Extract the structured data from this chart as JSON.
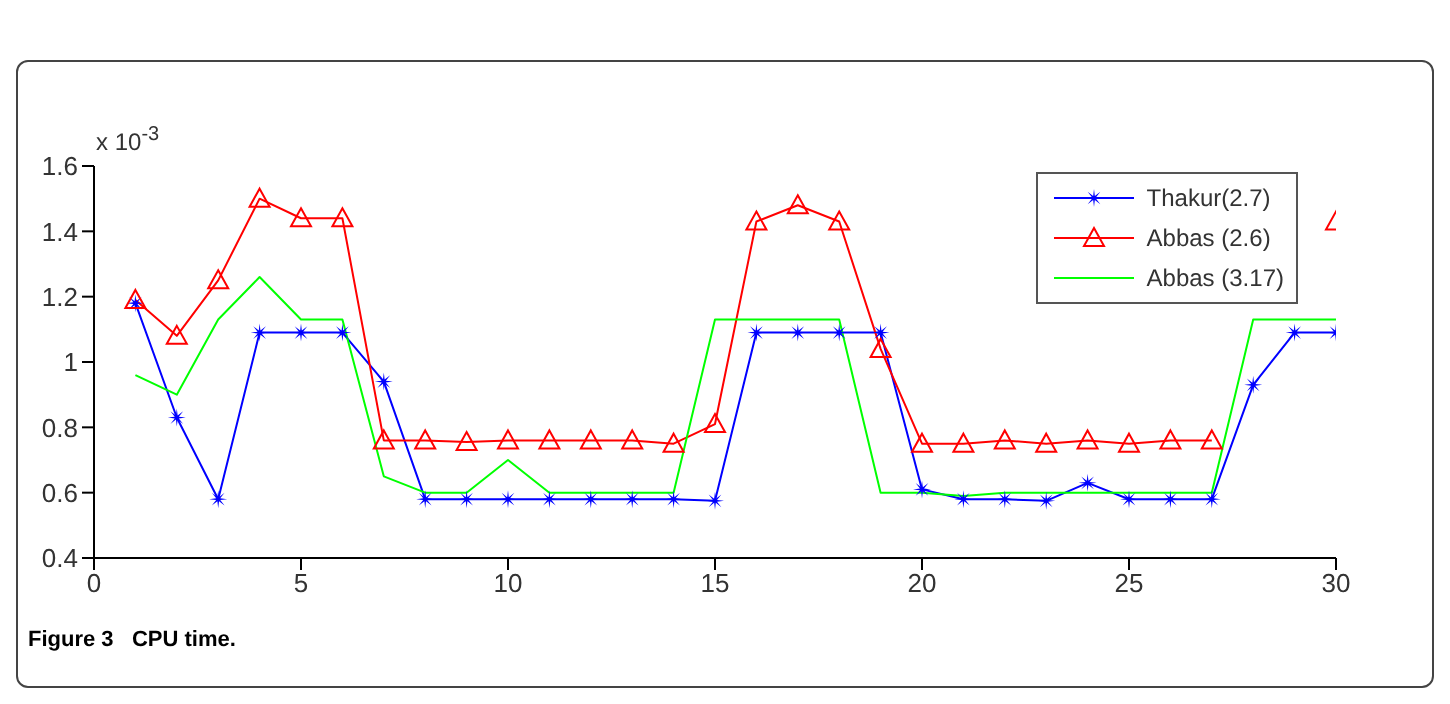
{
  "chart_data": {
    "type": "line",
    "x": [
      1,
      2,
      3,
      4,
      5,
      6,
      7,
      8,
      9,
      10,
      11,
      12,
      13,
      14,
      15,
      16,
      17,
      18,
      19,
      20,
      21,
      22,
      23,
      24,
      25,
      26,
      27,
      28,
      29,
      30
    ],
    "series": [
      {
        "name": "Thakur(2.7)",
        "color": "#0000ff",
        "marker": "star",
        "values": [
          1.18,
          0.83,
          0.58,
          1.09,
          1.09,
          1.09,
          0.94,
          0.58,
          0.58,
          0.58,
          0.58,
          0.58,
          0.58,
          0.58,
          0.575,
          1.09,
          1.09,
          1.09,
          1.09,
          0.61,
          0.58,
          0.58,
          0.575,
          0.63,
          0.58,
          0.58,
          0.58,
          0.93,
          1.09,
          1.09
        ]
      },
      {
        "name": "Abbas (2.6)",
        "color": "#ff0000",
        "marker": "triangle",
        "values": [
          1.19,
          1.08,
          1.25,
          1.5,
          1.44,
          1.44,
          0.76,
          0.76,
          0.755,
          0.76,
          0.76,
          0.76,
          0.76,
          0.75,
          0.81,
          1.43,
          1.48,
          1.43,
          1.04,
          0.75,
          0.75,
          0.76,
          0.75,
          0.76,
          0.75,
          0.76,
          0.76,
          null,
          null,
          1.43
        ]
      },
      {
        "name": "Abbas (3.17)",
        "color": "#00ff00",
        "marker": "none",
        "values": [
          0.96,
          0.9,
          1.13,
          1.26,
          1.13,
          1.13,
          0.65,
          0.6,
          0.6,
          0.7,
          0.6,
          0.6,
          0.6,
          0.6,
          1.13,
          1.13,
          1.13,
          1.13,
          0.6,
          0.6,
          0.59,
          0.6,
          0.6,
          0.6,
          0.6,
          0.6,
          0.6,
          1.13,
          1.13,
          1.13
        ]
      }
    ],
    "xlim": [
      0,
      30
    ],
    "xticks": [
      0,
      5,
      10,
      15,
      20,
      25,
      30
    ],
    "ylim": [
      0.4,
      1.6
    ],
    "yticks": [
      0.4,
      0.6,
      0.8,
      1,
      1.2,
      1.4,
      1.6
    ],
    "grid": false,
    "legend": "top right",
    "annotations": [
      "x 10$^{-3}$",
      "Figure 3   CPU time."
    ]
  }
}
